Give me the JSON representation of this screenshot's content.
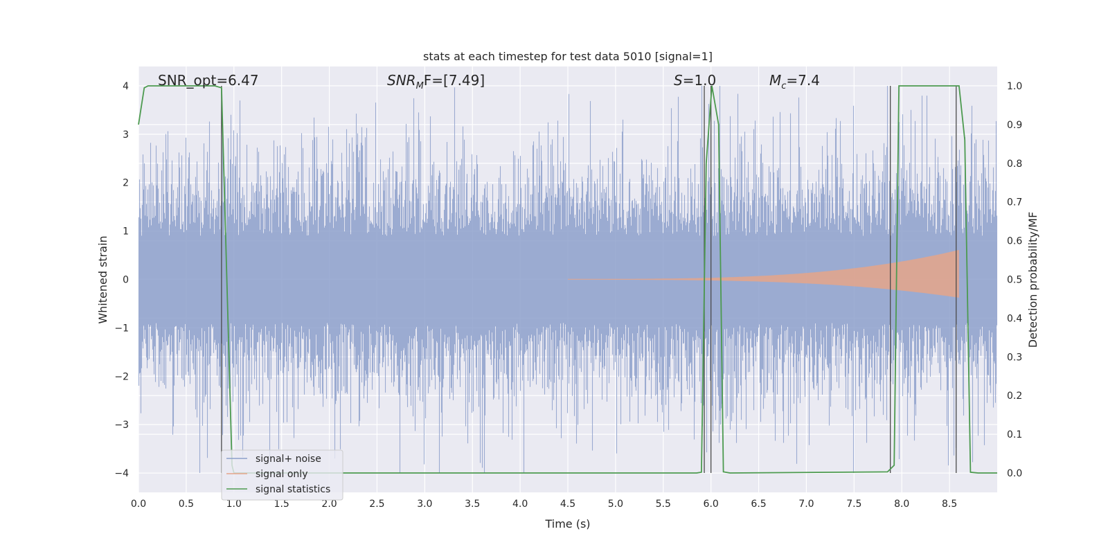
{
  "chart_data": {
    "type": "line",
    "title": "stats at each timestep for test data 5010 [signal=1]",
    "xlabel": "Time (s)",
    "ylabel_left": "Whitened strain",
    "ylabel_right": "Detection probability/MF",
    "xlim": [
      0.0,
      9.0
    ],
    "ylim_left": [
      -4.4,
      4.4
    ],
    "ylim_right": [
      -0.05,
      1.05
    ],
    "x_ticks": [
      "0.0",
      "0.5",
      "1.0",
      "1.5",
      "2.0",
      "2.5",
      "3.0",
      "3.5",
      "4.0",
      "4.5",
      "5.0",
      "5.5",
      "6.0",
      "6.5",
      "7.0",
      "7.5",
      "8.0",
      "8.5"
    ],
    "y_ticks_left": [
      "4",
      "3",
      "2",
      "1",
      "0",
      "−1",
      "−2",
      "−3",
      "−4"
    ],
    "y_ticks_right": [
      "1.0",
      "0.9",
      "0.8",
      "0.7",
      "0.6",
      "0.5",
      "0.4",
      "0.3",
      "0.2",
      "0.1",
      "0.0"
    ],
    "grid": true,
    "legend_position": "lower-left",
    "annotations": {
      "snr_opt": "SNR_opt=6.47",
      "snr_mf_main": "SNR",
      "snr_mf_sub": "M",
      "snr_mf_rest": "F=[7.49]",
      "s_label": "S",
      "s_rest": "=1.0",
      "mc_main": "M",
      "mc_sub": "c",
      "mc_rest": "=7.4"
    },
    "series": [
      {
        "name": "signal+ noise",
        "color": "#8da0cb",
        "description_values": {
          "typical_envelope": [
            -2.0,
            2.0
          ],
          "extreme_range": [
            -4.0,
            4.0
          ]
        }
      },
      {
        "name": "signal only",
        "color": "#e5a48a",
        "chirp_start": 4.5,
        "chirp_end": 8.6,
        "peak_amplitude": 0.6
      },
      {
        "name": "signal statistics",
        "color": "#4c9a4f",
        "axis": "right",
        "x": [
          0.0,
          0.06,
          0.1,
          0.15,
          0.8,
          0.87,
          0.98,
          1.0,
          5.85,
          5.9,
          5.95,
          6.01,
          6.08,
          6.13,
          6.2,
          7.85,
          7.92,
          7.97,
          8.55,
          8.6,
          8.66,
          8.72,
          8.8,
          9.0
        ],
        "values": [
          0.9,
          0.995,
          1.0,
          1.0,
          1.0,
          0.995,
          0.02,
          0.0,
          0.0,
          0.002,
          0.8,
          1.0,
          0.9,
          0.003,
          0.0,
          0.003,
          0.02,
          1.0,
          1.0,
          1.0,
          0.86,
          0.002,
          0.0,
          0.0
        ]
      }
    ],
    "vertical_markers": [
      0.87,
      5.93,
      6.0,
      7.88,
      8.57
    ]
  }
}
